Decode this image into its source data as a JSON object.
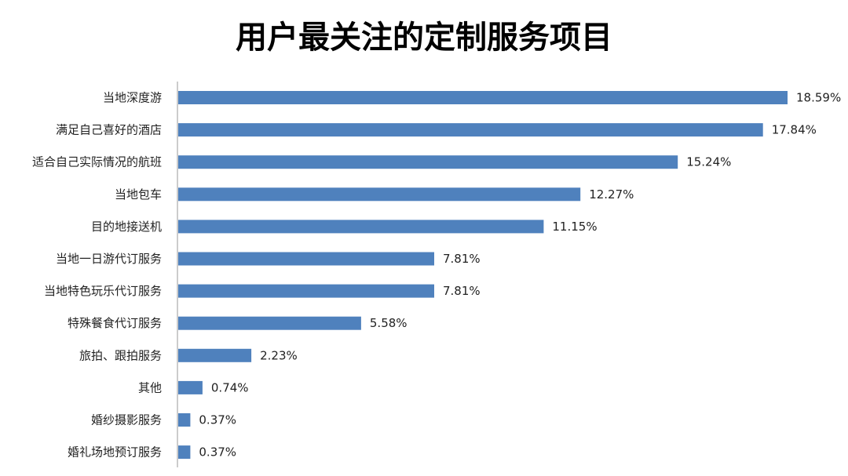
{
  "chart_data": {
    "type": "bar",
    "orientation": "horizontal",
    "title": "用户最关注的定制服务项目",
    "categories": [
      "当地深度游",
      "满足自己喜好的酒店",
      "适合自己实际情况的航班",
      "当地包车",
      "目的地接送机",
      "当地一日游代订服务",
      "当地特色玩乐代订服务",
      "特殊餐食代订服务",
      "旅拍、跟拍服务",
      "其他",
      "婚纱摄影服务",
      "婚礼场地预订服务"
    ],
    "values": [
      18.59,
      17.84,
      15.24,
      12.27,
      11.15,
      7.81,
      7.81,
      5.58,
      2.23,
      0.74,
      0.37,
      0.37
    ],
    "value_labels": [
      "18.59%",
      "17.84%",
      "15.24%",
      "12.27%",
      "11.15%",
      "7.81%",
      "7.81%",
      "5.58%",
      "2.23%",
      "0.74%",
      "0.37%",
      "0.37%"
    ],
    "unit": "%",
    "xlim": [
      0,
      18.59
    ],
    "grid": false,
    "legend": "none",
    "bar_color": "#4f81bd"
  }
}
